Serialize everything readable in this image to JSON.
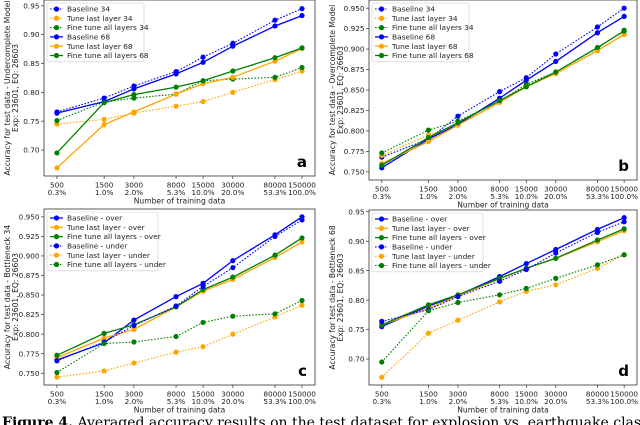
{
  "caption": {
    "label": "Figure 4.",
    "text": "Averaged accuracy results on the test dataset for explosion vs. earthquake classification"
  },
  "chart_data": [
    {
      "type": "line",
      "panel_label": "a",
      "ylabel": [
        "Accuracy for test data - Undercomplete Model",
        "Exp: 23601, EQ: 26603"
      ],
      "xlabel": "Number of training data",
      "xscale": "log",
      "x": [
        500,
        1500,
        3000,
        8000,
        15000,
        30000,
        80000,
        150000
      ],
      "x_tick_labels": [
        "500",
        "1500",
        "3000",
        "8000",
        "15000",
        "30000",
        "80000",
        "150000"
      ],
      "x_tick_sublabels": [
        "0.3%",
        "1.0%",
        "2.0%",
        "5.3%",
        "10.0%",
        "20.0%",
        "53.3%",
        "100.0%"
      ],
      "ylim": [
        0.655,
        0.96
      ],
      "yticks": [
        0.7,
        0.75,
        0.8,
        0.85,
        0.9,
        0.95
      ],
      "ytick_labels": [
        "0.70",
        "0.75",
        "0.80",
        "0.85",
        "0.90",
        "0.95"
      ],
      "legend": "upper-left",
      "grid": false,
      "series": [
        {
          "name": "Baseline 34",
          "color": "#0000ff",
          "linestyle": "dotted",
          "values": [
            0.766,
            0.79,
            0.811,
            0.836,
            0.861,
            0.885,
            0.925,
            0.945
          ]
        },
        {
          "name": "Tune last layer 34",
          "color": "#ffa500",
          "linestyle": "dotted",
          "values": [
            0.745,
            0.753,
            0.764,
            0.776,
            0.784,
            0.8,
            0.822,
            0.837
          ]
        },
        {
          "name": "Fine tune all layers 34",
          "color": "#008000",
          "linestyle": "dotted",
          "values": [
            0.751,
            0.783,
            0.79,
            0.797,
            0.82,
            0.823,
            0.826,
            0.843
          ]
        },
        {
          "name": "Baseline 68",
          "color": "#0000ff",
          "linestyle": "solid",
          "values": [
            0.764,
            0.784,
            0.806,
            0.832,
            0.852,
            0.88,
            0.915,
            0.933
          ]
        },
        {
          "name": "Tune last layer 68",
          "color": "#ffa500",
          "linestyle": "solid",
          "values": [
            0.669,
            0.744,
            0.766,
            0.797,
            0.815,
            0.826,
            0.854,
            0.876
          ]
        },
        {
          "name": "Fine tune all layers 68",
          "color": "#008000",
          "linestyle": "solid",
          "values": [
            0.695,
            0.782,
            0.796,
            0.809,
            0.82,
            0.837,
            0.86,
            0.877
          ]
        }
      ]
    },
    {
      "type": "line",
      "panel_label": "b",
      "ylabel": [
        "Accuracy for test data - Overcomplete Model",
        "Exp: 23601, EQ: 26603"
      ],
      "xlabel": "Number of training data",
      "xscale": "log",
      "x": [
        500,
        1500,
        3000,
        8000,
        15000,
        30000,
        80000,
        150000
      ],
      "x_tick_labels": [
        "500",
        "1500",
        "3000",
        "8000",
        "15000",
        "30000",
        "80000",
        "150000"
      ],
      "x_tick_sublabels": [
        "0.3%",
        "1.0%",
        "2.0%",
        "5.3%",
        "10.0%",
        "20.0%",
        "53.3%",
        "100.0%"
      ],
      "ylim": [
        0.74,
        0.96
      ],
      "yticks": [
        0.75,
        0.775,
        0.8,
        0.825,
        0.85,
        0.875,
        0.9,
        0.925,
        0.95
      ],
      "ytick_labels": [
        "0.750",
        "0.775",
        "0.800",
        "0.825",
        "0.850",
        "0.875",
        "0.900",
        "0.925",
        "0.950"
      ],
      "legend": "upper-left",
      "grid": false,
      "series": [
        {
          "name": "Baseline 34",
          "color": "#0000ff",
          "linestyle": "dotted",
          "values": [
            0.768,
            0.79,
            0.818,
            0.848,
            0.865,
            0.894,
            0.927,
            0.95
          ]
        },
        {
          "name": "Tune last layer 34",
          "color": "#ffa500",
          "linestyle": "dotted",
          "values": [
            0.77,
            0.795,
            0.808,
            0.835,
            0.855,
            0.87,
            0.898,
            0.918
          ]
        },
        {
          "name": "Fine tune all layers 34",
          "color": "#008000",
          "linestyle": "dotted",
          "values": [
            0.773,
            0.801,
            0.812,
            0.836,
            0.857,
            0.872,
            0.901,
            0.923
          ]
        },
        {
          "name": "Baseline 68",
          "color": "#0000ff",
          "linestyle": "solid",
          "values": [
            0.755,
            0.79,
            0.808,
            0.84,
            0.862,
            0.885,
            0.92,
            0.94
          ]
        },
        {
          "name": "Tune last layer 68",
          "color": "#ffa500",
          "linestyle": "solid",
          "values": [
            0.76,
            0.787,
            0.807,
            0.835,
            0.854,
            0.87,
            0.898,
            0.918
          ]
        },
        {
          "name": "Fine tune all layers 68",
          "color": "#008000",
          "linestyle": "solid",
          "values": [
            0.758,
            0.792,
            0.81,
            0.837,
            0.854,
            0.872,
            0.902,
            0.922
          ]
        }
      ]
    },
    {
      "type": "line",
      "panel_label": "c",
      "ylabel": [
        "Accuracy for test data - Bottleneck 34",
        "Exp: 23601, EQ: 26603"
      ],
      "xlabel": "Number of training data",
      "xscale": "log",
      "x": [
        500,
        1500,
        3000,
        8000,
        15000,
        30000,
        80000,
        150000
      ],
      "x_tick_labels": [
        "500",
        "1500",
        "3000",
        "8000",
        "15000",
        "30000",
        "80000",
        "150000"
      ],
      "x_tick_sublabels": [
        "0.3%",
        "1.0%",
        "2.0%",
        "5.3%",
        "10.0%",
        "20.0%",
        "53.3%",
        "100.0%"
      ],
      "ylim": [
        0.735,
        0.96
      ],
      "yticks": [
        0.75,
        0.775,
        0.8,
        0.825,
        0.85,
        0.875,
        0.9,
        0.925,
        0.95
      ],
      "ytick_labels": [
        "0.750",
        "0.775",
        "0.800",
        "0.825",
        "0.850",
        "0.875",
        "0.900",
        "0.925",
        "0.950"
      ],
      "legend": "upper-left",
      "grid": false,
      "series": [
        {
          "name": "Baseline - over",
          "color": "#0000ff",
          "linestyle": "solid",
          "values": [
            0.767,
            0.789,
            0.818,
            0.848,
            0.865,
            0.894,
            0.927,
            0.95
          ]
        },
        {
          "name": "Tune last layer - over",
          "color": "#ffa500",
          "linestyle": "solid",
          "values": [
            0.77,
            0.795,
            0.806,
            0.835,
            0.855,
            0.87,
            0.898,
            0.918
          ]
        },
        {
          "name": "Fine tune all layers - over",
          "color": "#008000",
          "linestyle": "solid",
          "values": [
            0.773,
            0.801,
            0.812,
            0.835,
            0.857,
            0.873,
            0.901,
            0.923
          ]
        },
        {
          "name": "Baseline - under",
          "color": "#0000ff",
          "linestyle": "dotted",
          "values": [
            0.766,
            0.79,
            0.811,
            0.836,
            0.861,
            0.885,
            0.925,
            0.946
          ]
        },
        {
          "name": "Tune last layer - under",
          "color": "#ffa500",
          "linestyle": "dotted",
          "values": [
            0.745,
            0.753,
            0.763,
            0.777,
            0.784,
            0.8,
            0.822,
            0.837
          ]
        },
        {
          "name": "Fine tune all layers - under",
          "color": "#008000",
          "linestyle": "dotted",
          "values": [
            0.751,
            0.788,
            0.79,
            0.797,
            0.815,
            0.823,
            0.826,
            0.843
          ]
        }
      ]
    },
    {
      "type": "line",
      "panel_label": "d",
      "ylabel": [
        "Accuracy for test data - Bottleneck 68",
        "Exp: 23601, EQ: 26603"
      ],
      "xlabel": "Number of training data",
      "xscale": "log",
      "x": [
        500,
        1500,
        3000,
        8000,
        15000,
        30000,
        80000,
        150000
      ],
      "x_tick_labels": [
        "500",
        "1500",
        "3000",
        "8000",
        "15000",
        "30000",
        "80000",
        "150000"
      ],
      "x_tick_sublabels": [
        "0.3%",
        "1.0%",
        "2.0%",
        "5.3%",
        "10.0%",
        "20.0%",
        "53.3%",
        "100.0%"
      ],
      "ylim": [
        0.656,
        0.953
      ],
      "yticks": [
        0.7,
        0.75,
        0.8,
        0.85,
        0.9,
        0.95
      ],
      "ytick_labels": [
        "0.70",
        "0.75",
        "0.80",
        "0.85",
        "0.90",
        "0.95"
      ],
      "legend": "upper-left",
      "grid": false,
      "series": [
        {
          "name": "Baseline - over",
          "color": "#0000ff",
          "linestyle": "solid",
          "values": [
            0.755,
            0.79,
            0.808,
            0.84,
            0.862,
            0.886,
            0.92,
            0.94
          ]
        },
        {
          "name": "Tune last layer - over",
          "color": "#ffa500",
          "linestyle": "solid",
          "values": [
            0.758,
            0.786,
            0.807,
            0.836,
            0.854,
            0.871,
            0.899,
            0.918
          ]
        },
        {
          "name": "Fine tune all layers - over",
          "color": "#008000",
          "linestyle": "solid",
          "values": [
            0.758,
            0.792,
            0.809,
            0.837,
            0.854,
            0.871,
            0.902,
            0.921
          ]
        },
        {
          "name": "Baseline - under",
          "color": "#0000ff",
          "linestyle": "dotted",
          "values": [
            0.764,
            0.784,
            0.806,
            0.832,
            0.852,
            0.88,
            0.915,
            0.933
          ]
        },
        {
          "name": "Tune last layer - under",
          "color": "#ffa500",
          "linestyle": "dotted",
          "values": [
            0.669,
            0.744,
            0.766,
            0.797,
            0.815,
            0.826,
            0.854,
            0.877
          ]
        },
        {
          "name": "Fine tune all layers - under",
          "color": "#008000",
          "linestyle": "dotted",
          "values": [
            0.695,
            0.782,
            0.796,
            0.809,
            0.82,
            0.837,
            0.86,
            0.877
          ]
        }
      ]
    }
  ]
}
